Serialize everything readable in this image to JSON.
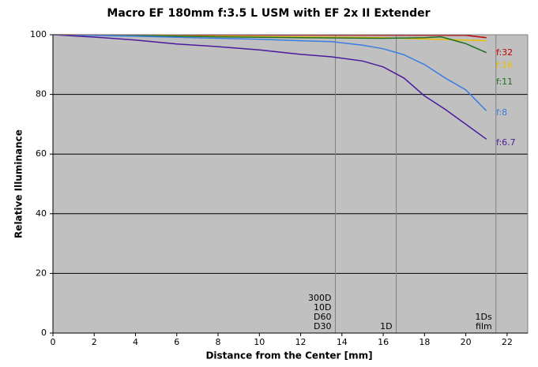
{
  "chart_data": {
    "type": "line",
    "title": "Macro EF 180mm f:3.5 L USM with EF 2x II Extender",
    "x_label": "Distance from the Center [mm]",
    "y_label": "Relative Illuminance",
    "xlim": [
      0,
      23
    ],
    "ylim": [
      0,
      100
    ],
    "xticks": [
      0,
      2,
      4,
      6,
      8,
      10,
      12,
      14,
      16,
      18,
      20,
      22
    ],
    "yticks": [
      0,
      20,
      40,
      60,
      80,
      100
    ],
    "grid": true,
    "sensor_lines": [
      {
        "x": 13.68,
        "labels": [
          "300D",
          "10D",
          "D60",
          "D30"
        ]
      },
      {
        "x": 16.63,
        "labels": [
          "1D"
        ]
      },
      {
        "x": 21.46,
        "labels": [
          "1Ds",
          "film"
        ]
      }
    ],
    "series": [
      {
        "name": "f:32",
        "color": "#c00000",
        "x": [
          0,
          10,
          20,
          21
        ],
        "values": [
          100,
          99.9,
          99.8,
          99
        ]
      },
      {
        "name": "f:16",
        "color": "#e8c000",
        "x": [
          0,
          8,
          16,
          21
        ],
        "values": [
          100,
          99.5,
          99,
          98
        ]
      },
      {
        "name": "f:11",
        "color": "#1e6e1e",
        "x": [
          0,
          4,
          8,
          12,
          16,
          18,
          18.8,
          19.5,
          20,
          21
        ],
        "values": [
          100,
          99.7,
          99.3,
          99,
          98.8,
          99,
          99.3,
          98,
          97,
          94
        ]
      },
      {
        "name": "f:8",
        "color": "#3a7de0",
        "x": [
          0,
          4,
          8,
          10,
          12,
          13.5,
          15,
          16,
          17,
          18,
          19,
          20,
          21
        ],
        "values": [
          100,
          99.5,
          98.8,
          98.5,
          98,
          97.7,
          96.5,
          95.3,
          93.3,
          90,
          85.5,
          81.5,
          74.5
        ]
      },
      {
        "name": "f:6.7",
        "color": "#4b1a9c",
        "x": [
          0,
          2,
          4,
          6,
          8,
          10,
          12,
          13.5,
          15,
          16,
          17,
          18,
          19,
          20,
          21
        ],
        "values": [
          100,
          99.2,
          98.2,
          96.9,
          96,
          94.9,
          93.4,
          92.6,
          91.2,
          89.2,
          85.5,
          79.5,
          75,
          70,
          65
        ]
      }
    ]
  }
}
